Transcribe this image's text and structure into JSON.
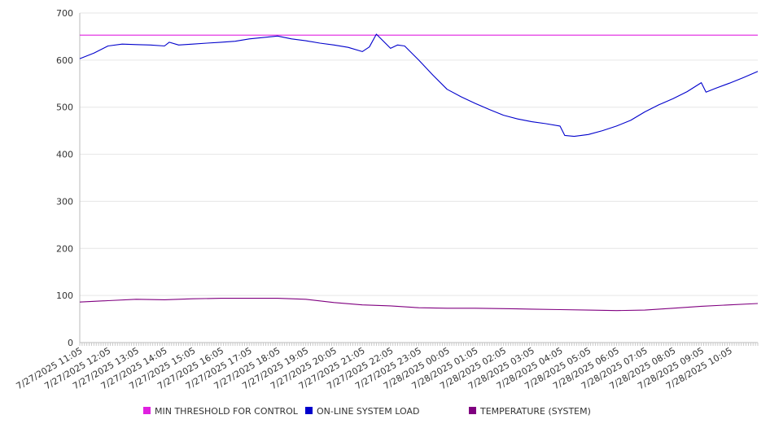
{
  "chart_data": {
    "type": "line",
    "title": "",
    "xlabel": "",
    "ylabel": "",
    "ylim": [
      0,
      700
    ],
    "y_ticks": [
      0,
      100,
      200,
      300,
      400,
      500,
      600,
      700
    ],
    "grid": true,
    "legend_position": "bottom",
    "x_tick_labels": [
      "7/27/2025 11:05",
      "7/27/2025 12:05",
      "7/27/2025 13:05",
      "7/27/2025 14:05",
      "7/27/2025 15:05",
      "7/27/2025 16:05",
      "7/27/2025 17:05",
      "7/27/2025 18:05",
      "7/27/2025 19:05",
      "7/27/2025 20:05",
      "7/27/2025 21:05",
      "7/27/2025 22:05",
      "7/27/2025 23:05",
      "7/28/2025 00:05",
      "7/28/2025 01:05",
      "7/28/2025 02:05",
      "7/28/2025 03:05",
      "7/28/2025 04:05",
      "7/28/2025 05:05",
      "7/28/2025 06:05",
      "7/28/2025 07:05",
      "7/28/2025 08:05",
      "7/28/2025 09:05",
      "7/28/2025 10:05"
    ],
    "x_range": [
      "7/27/2025 11:05",
      "7/28/2025 11:05"
    ],
    "series": [
      {
        "name": "MIN THRESHOLD FOR CONTROL",
        "color": "#e020e0",
        "x": [
          "7/27/2025 11:05",
          "7/28/2025 11:05"
        ],
        "y": [
          653,
          653
        ]
      },
      {
        "name": "ON-LINE SYSTEM LOAD",
        "color": "#0000cc",
        "x": [
          "7/27/2025 11:05",
          "7/27/2025 11:35",
          "7/27/2025 12:05",
          "7/27/2025 12:35",
          "7/27/2025 13:05",
          "7/27/2025 13:35",
          "7/27/2025 14:05",
          "7/27/2025 14:15",
          "7/27/2025 14:35",
          "7/27/2025 15:05",
          "7/27/2025 15:35",
          "7/27/2025 16:05",
          "7/27/2025 16:35",
          "7/27/2025 17:05",
          "7/27/2025 17:35",
          "7/27/2025 18:05",
          "7/27/2025 18:35",
          "7/27/2025 19:05",
          "7/27/2025 19:35",
          "7/27/2025 20:05",
          "7/27/2025 20:35",
          "7/27/2025 21:05",
          "7/27/2025 21:20",
          "7/27/2025 21:35",
          "7/27/2025 22:05",
          "7/27/2025 22:20",
          "7/27/2025 22:35",
          "7/27/2025 23:05",
          "7/27/2025 23:35",
          "7/28/2025 00:05",
          "7/28/2025 00:35",
          "7/28/2025 01:05",
          "7/28/2025 01:35",
          "7/28/2025 02:05",
          "7/28/2025 02:35",
          "7/28/2025 03:05",
          "7/28/2025 03:35",
          "7/28/2025 04:05",
          "7/28/2025 04:15",
          "7/28/2025 04:35",
          "7/28/2025 05:05",
          "7/28/2025 05:35",
          "7/28/2025 06:05",
          "7/28/2025 06:35",
          "7/28/2025 07:05",
          "7/28/2025 07:35",
          "7/28/2025 08:05",
          "7/28/2025 08:35",
          "7/28/2025 09:05",
          "7/28/2025 09:15",
          "7/28/2025 09:35",
          "7/28/2025 10:05",
          "7/28/2025 10:35",
          "7/28/2025 11:05"
        ],
        "y": [
          603,
          615,
          630,
          634,
          633,
          632,
          630,
          638,
          632,
          634,
          636,
          638,
          640,
          645,
          648,
          651,
          645,
          641,
          636,
          632,
          627,
          618,
          628,
          655,
          625,
          632,
          630,
          600,
          568,
          538,
          522,
          508,
          495,
          483,
          475,
          469,
          465,
          460,
          440,
          438,
          442,
          450,
          460,
          472,
          490,
          505,
          518,
          533,
          552,
          532,
          540,
          551,
          563,
          576
        ]
      },
      {
        "name": "TEMPERATURE (SYSTEM)",
        "color": "#800080",
        "x": [
          "7/27/2025 11:05",
          "7/27/2025 12:05",
          "7/27/2025 13:05",
          "7/27/2025 14:05",
          "7/27/2025 15:05",
          "7/27/2025 16:05",
          "7/27/2025 17:05",
          "7/27/2025 18:05",
          "7/27/2025 19:05",
          "7/27/2025 20:05",
          "7/27/2025 21:05",
          "7/27/2025 22:05",
          "7/27/2025 23:05",
          "7/28/2025 00:05",
          "7/28/2025 01:05",
          "7/28/2025 02:05",
          "7/28/2025 03:05",
          "7/28/2025 04:05",
          "7/28/2025 05:05",
          "7/28/2025 06:05",
          "7/28/2025 07:05",
          "7/28/2025 08:05",
          "7/28/2025 09:05",
          "7/28/2025 10:05",
          "7/28/2025 11:05"
        ],
        "y": [
          86,
          89,
          92,
          91,
          93,
          94,
          94,
          94,
          92,
          85,
          80,
          78,
          74,
          73,
          73,
          72,
          71,
          70,
          69,
          68,
          69,
          73,
          77,
          80,
          83
        ]
      }
    ]
  }
}
